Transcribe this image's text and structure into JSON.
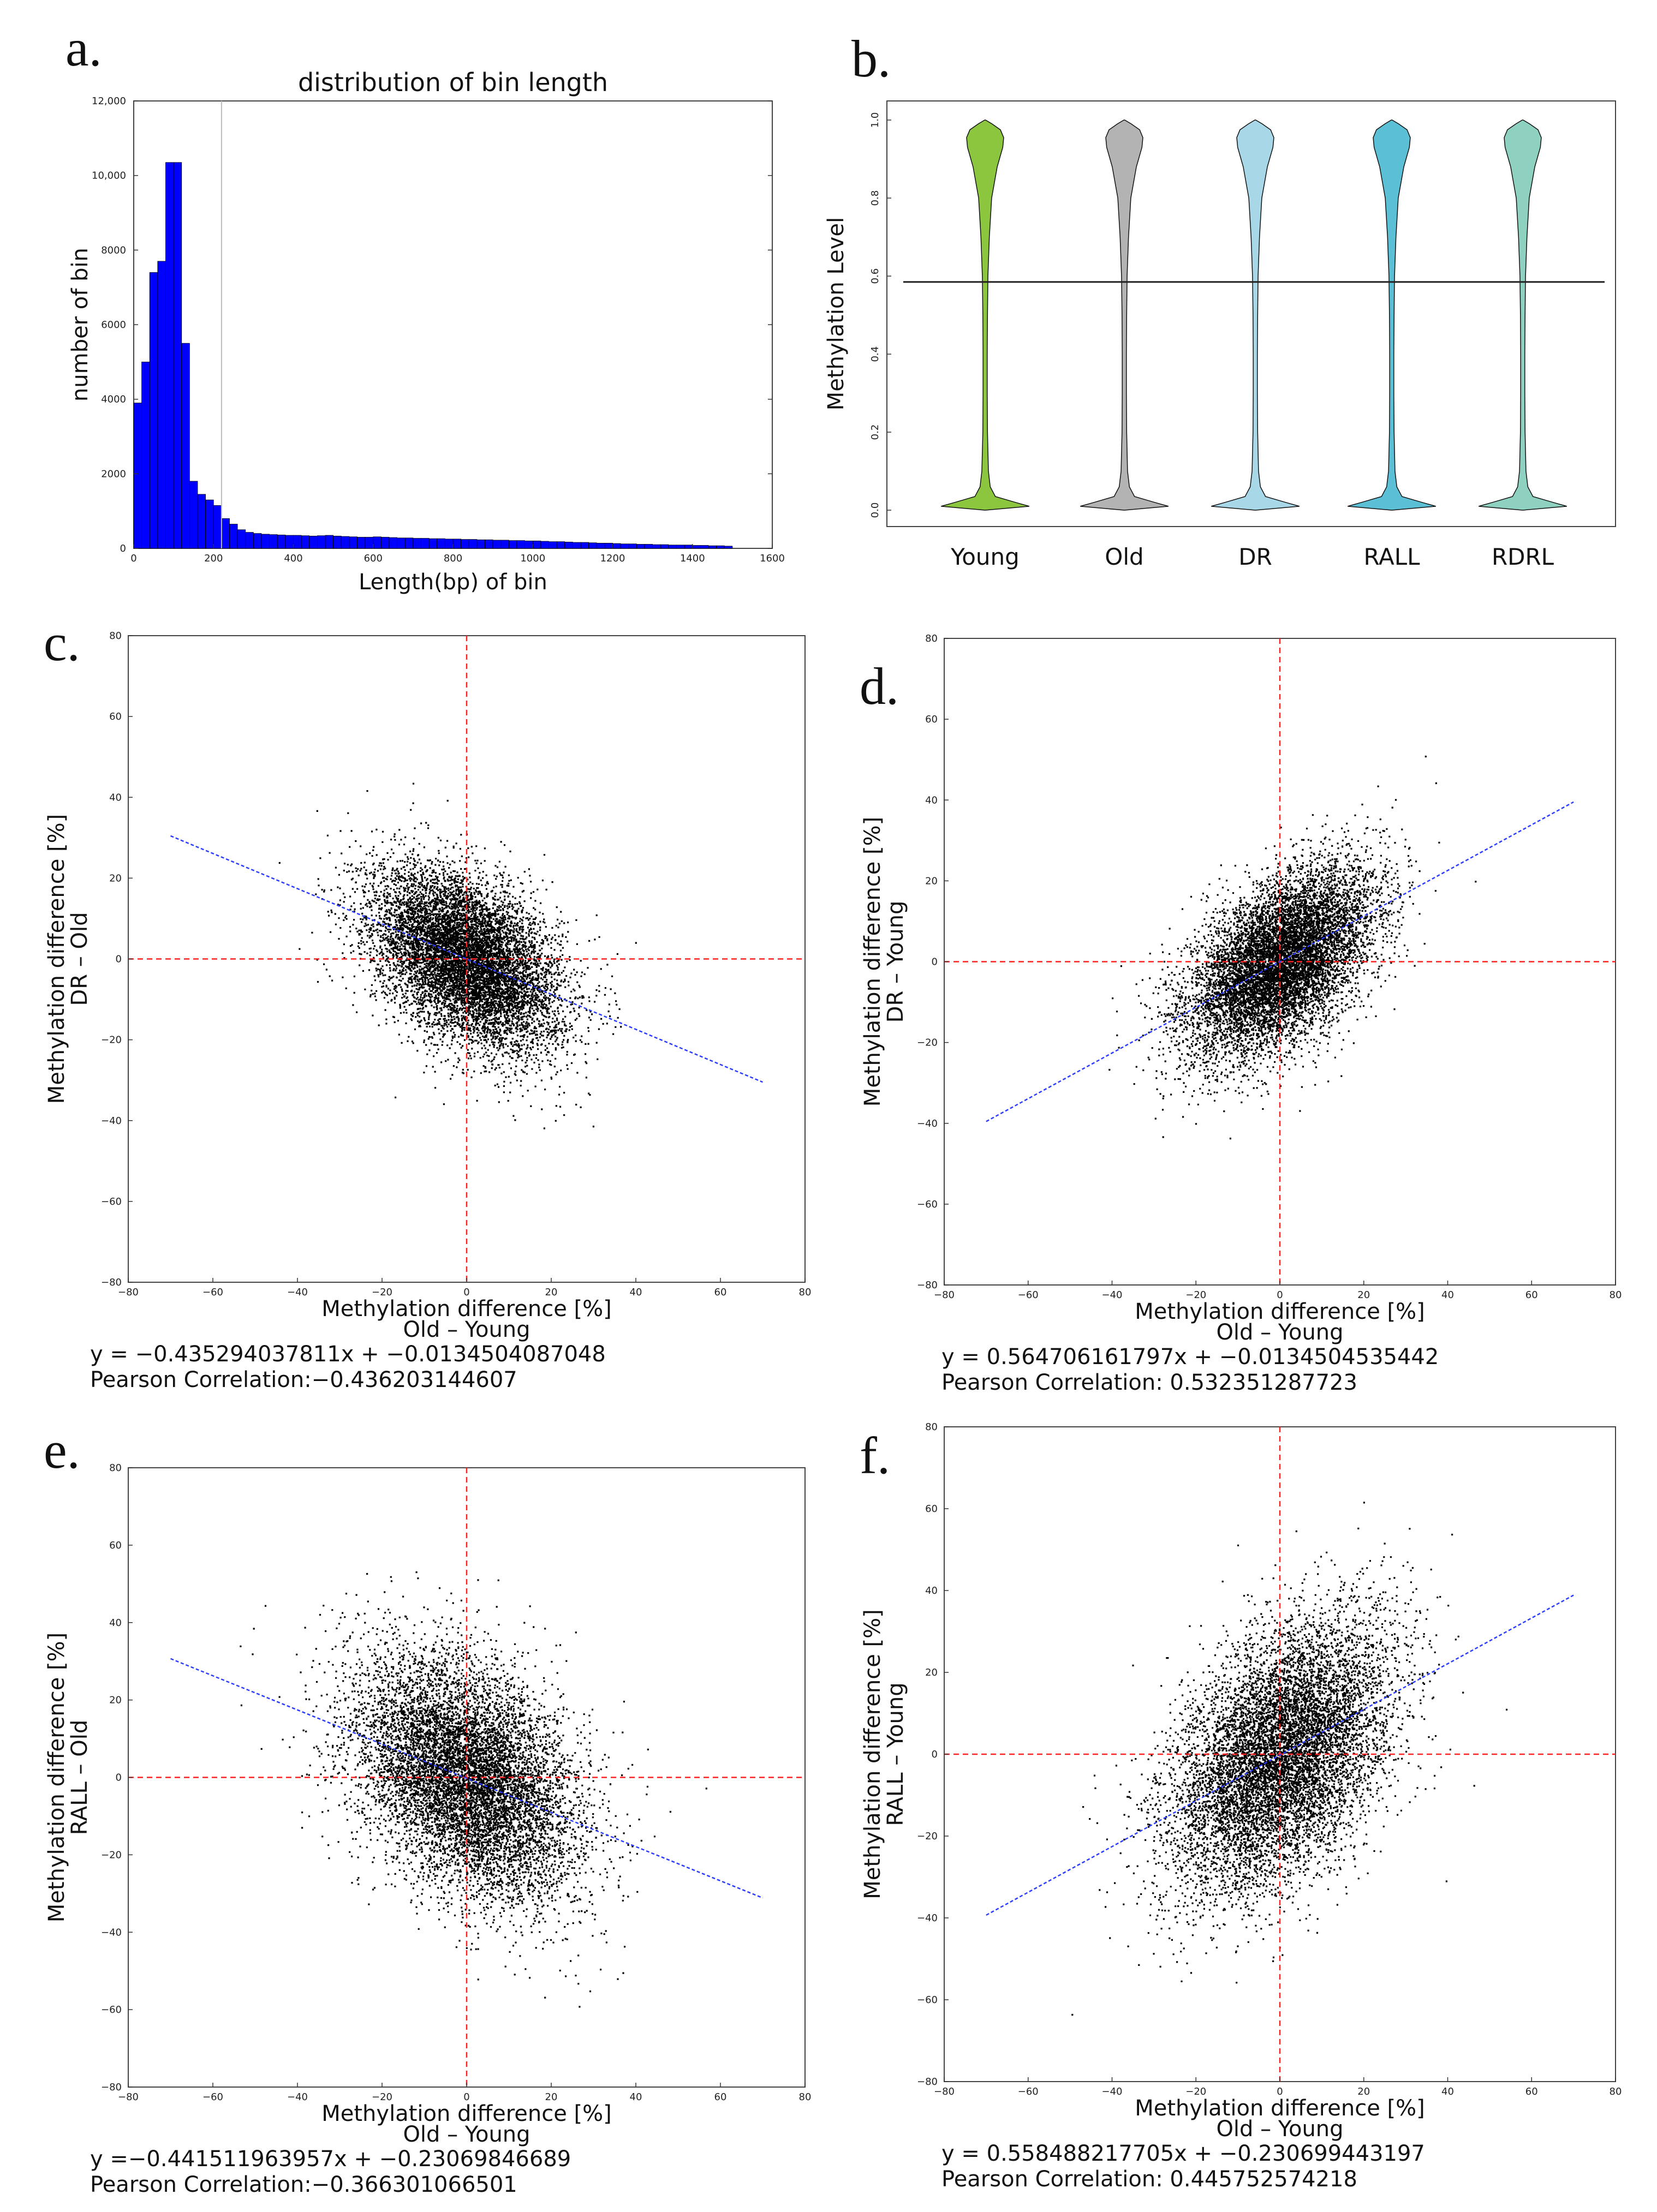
{
  "panels": {
    "a": {
      "letter": "a."
    },
    "b": {
      "letter": "b."
    },
    "c": {
      "letter": "c."
    },
    "d": {
      "letter": "d."
    },
    "e": {
      "letter": "e."
    },
    "f": {
      "letter": "f."
    }
  },
  "chart_data": [
    {
      "id": "a",
      "type": "bar",
      "title": "distribution of bin length",
      "xlabel": "Length(bp) of bin",
      "ylabel": "number of bin",
      "xlim": [
        0,
        1600
      ],
      "ylim": [
        0,
        12000
      ],
      "xticks": [
        0,
        200,
        400,
        600,
        800,
        1000,
        1200,
        1400,
        1600
      ],
      "yticks": [
        0,
        2000,
        4000,
        6000,
        8000,
        10000,
        12000
      ],
      "ytick_labels": [
        "0",
        "2000",
        "4000",
        "6000",
        "8000",
        "10,000",
        "12,000"
      ],
      "bin_width": 20,
      "bin_starts": [
        0,
        20,
        40,
        60,
        80,
        100,
        120,
        140,
        160,
        180,
        200,
        220,
        240,
        260,
        280,
        300,
        320,
        340,
        360,
        380,
        400,
        420,
        440,
        460,
        480,
        500,
        520,
        540,
        560,
        580,
        600,
        620,
        640,
        660,
        680,
        700,
        720,
        740,
        760,
        780,
        800,
        820,
        840,
        860,
        880,
        900,
        920,
        940,
        960,
        980,
        1000,
        1020,
        1040,
        1060,
        1080,
        1100,
        1120,
        1140,
        1160,
        1180,
        1200,
        1220,
        1240,
        1260,
        1280,
        1300,
        1320,
        1340,
        1360,
        1380,
        1400,
        1420,
        1440,
        1460,
        1480
      ],
      "values": [
        3900,
        5000,
        7400,
        7700,
        10350,
        10350,
        5500,
        1800,
        1450,
        1300,
        1150,
        800,
        650,
        500,
        430,
        400,
        380,
        370,
        360,
        350,
        350,
        340,
        330,
        340,
        350,
        330,
        320,
        310,
        300,
        300,
        310,
        300,
        290,
        280,
        280,
        270,
        270,
        260,
        260,
        250,
        250,
        240,
        240,
        230,
        230,
        220,
        220,
        210,
        210,
        200,
        200,
        190,
        180,
        180,
        170,
        160,
        160,
        150,
        140,
        140,
        130,
        120,
        120,
        110,
        110,
        100,
        100,
        90,
        90,
        90,
        80,
        80,
        70,
        70,
        60
      ],
      "bar_color": "#0000ff",
      "reference_line_x": 220
    },
    {
      "id": "b",
      "type": "violin",
      "ylabel": "Methylation Level",
      "ylim": [
        0.0,
        1.0
      ],
      "yticks": [
        0.0,
        0.2,
        0.4,
        0.6,
        0.8,
        1.0
      ],
      "categories": [
        "Young",
        "Old",
        "DR",
        "RALL",
        "RDRL"
      ],
      "colors": [
        "#8cc63f",
        "#b3b3b3",
        "#a8d8e8",
        "#5bc0d6",
        "#8ed1c0"
      ],
      "mean_line": 0.585
    },
    {
      "id": "c",
      "type": "scatter",
      "xlabel": "Methylation difference [%]",
      "xsub": "Old – Young",
      "ylabel": "Methylation difference [%]",
      "ysub": "DR – Old",
      "xlim": [
        -80,
        80
      ],
      "ylim": [
        -80,
        80
      ],
      "ticks": [
        -80,
        -60,
        -40,
        -20,
        0,
        20,
        40,
        60,
        80
      ],
      "slope": -0.435294037811,
      "intercept": -0.0134504087048,
      "corr": -0.436,
      "fit_x": [
        -70,
        70
      ],
      "equation": "y = −0.435294037811x + −0.0134504087048",
      "pearson": "Pearson Correlation:−0.436203144607",
      "sd": 11
    },
    {
      "id": "d",
      "type": "scatter",
      "xlabel": "Methylation difference [%]",
      "xsub": "Old – Young",
      "ylabel": "Methylation difference [%]",
      "ysub": "DR – Young",
      "xlim": [
        -80,
        80
      ],
      "ylim": [
        -80,
        80
      ],
      "ticks": [
        -80,
        -60,
        -40,
        -20,
        0,
        20,
        40,
        60,
        80
      ],
      "slope": 0.564706161797,
      "intercept": -0.0134504535442,
      "corr": 0.532,
      "fit_x": [
        -70,
        70
      ],
      "equation": "y = 0.564706161797x + −0.0134504535442",
      "pearson": "Pearson Correlation: 0.532351287723",
      "sd": 11
    },
    {
      "id": "e",
      "type": "scatter",
      "xlabel": "Methylation difference [%]",
      "xsub": "Old – Young",
      "ylabel": "Methylation difference [%]",
      "ysub": "RALL – Old",
      "xlim": [
        -80,
        80
      ],
      "ylim": [
        -80,
        80
      ],
      "ticks": [
        -80,
        -60,
        -40,
        -20,
        0,
        20,
        40,
        60,
        80
      ],
      "slope": -0.441511963957,
      "intercept": -0.23069846689,
      "corr": -0.366,
      "fit_x": [
        -70,
        70
      ],
      "equation": "y =−0.441511963957x + −0.23069846689",
      "pearson": "Pearson Correlation:−0.366301066501",
      "sd": 13
    },
    {
      "id": "f",
      "type": "scatter",
      "xlabel": "Methylation difference [%]",
      "xsub": "Old – Young",
      "ylabel": "Methylation difference [%]",
      "ysub": "RALL – Young",
      "xlim": [
        -80,
        80
      ],
      "ylim": [
        -80,
        80
      ],
      "ticks": [
        -80,
        -60,
        -40,
        -20,
        0,
        20,
        40,
        60,
        80
      ],
      "slope": 0.558488217705,
      "intercept": -0.230699443197,
      "corr": 0.446,
      "fit_x": [
        -70,
        70
      ],
      "equation": "y = 0.558488217705x + −0.230699443197",
      "pearson": "Pearson Correlation: 0.445752574218",
      "sd": 13
    }
  ]
}
